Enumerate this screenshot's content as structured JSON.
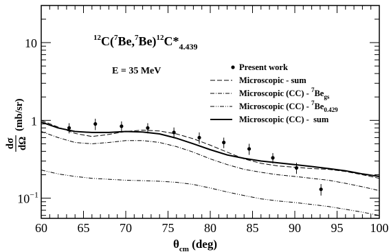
{
  "chart_data": {
    "type": "scatter",
    "title": {
      "sup1": "12",
      "t1": "C(",
      "sup2": "7",
      "t2": "Be,",
      "sup3": "7",
      "t3": "Be)",
      "sup4": "12",
      "t4": "C*",
      "sub": "4.439"
    },
    "energy_label": "E = 35 MeV",
    "xlabel": {
      "main": "θ",
      "sub": "cm",
      "rest": " (deg)"
    },
    "ylabel": {
      "num": "dσ",
      "den": "dΩ",
      "unit": "(mb/sr)"
    },
    "xlim": [
      60,
      100
    ],
    "ylim": [
      0.055,
      30
    ],
    "yscale": "log",
    "x_ticks": [
      60,
      65,
      70,
      75,
      80,
      85,
      90,
      95,
      100
    ],
    "x_tick_labels": [
      "60",
      "65",
      "70",
      "75",
      "80",
      "85",
      "90",
      "95",
      "100"
    ],
    "y_major_ticks": [
      {
        "value": 0.1,
        "label_base": "10",
        "label_exp": "−1"
      },
      {
        "value": 1,
        "label_base": "1",
        "label_exp": ""
      },
      {
        "value": 10,
        "label_base": "10",
        "label_exp": ""
      }
    ],
    "legend": {
      "placement": "top-right",
      "entries": [
        {
          "key": "data",
          "style": "marker",
          "text": "Present work",
          "sup": "",
          "sub": ""
        },
        {
          "key": "sum",
          "style": "dashed",
          "text": "Microscopic - sum",
          "sup": "",
          "sub": ""
        },
        {
          "key": "gs",
          "style": "dashdot",
          "text": "Microscopic (CC) - ",
          "sup": "7",
          "base": "Be",
          "sub": "gs"
        },
        {
          "key": "exc",
          "style": "dashdotdot",
          "text": "Microscopic (CC) - ",
          "sup": "7",
          "base": "Be",
          "sub": "0.429"
        },
        {
          "key": "ccsum",
          "style": "solid",
          "text": "Microscopic (CC) -  sum",
          "sup": "",
          "sub": ""
        }
      ]
    },
    "data_points": [
      {
        "x": 63.3,
        "y": 0.8,
        "err": 0.12
      },
      {
        "x": 66.4,
        "y": 0.9,
        "err": 0.15
      },
      {
        "x": 69.5,
        "y": 0.84,
        "err": 0.13
      },
      {
        "x": 72.6,
        "y": 0.8,
        "err": 0.12
      },
      {
        "x": 75.7,
        "y": 0.7,
        "err": 0.11
      },
      {
        "x": 78.7,
        "y": 0.6,
        "err": 0.1
      },
      {
        "x": 81.6,
        "y": 0.52,
        "err": 0.08
      },
      {
        "x": 84.6,
        "y": 0.43,
        "err": 0.07
      },
      {
        "x": 87.4,
        "y": 0.33,
        "err": 0.05
      },
      {
        "x": 90.2,
        "y": 0.245,
        "err": 0.04
      },
      {
        "x": 93.1,
        "y": 0.13,
        "err": 0.022
      }
    ],
    "series": [
      {
        "key": "sum",
        "style": "dashed",
        "x": [
          60,
          62,
          64,
          66,
          68,
          70,
          72,
          74,
          76,
          78,
          80,
          82,
          84,
          86,
          88,
          90,
          92,
          94,
          96,
          98,
          100
        ],
        "y": [
          1.0,
          0.82,
          0.68,
          0.62,
          0.66,
          0.72,
          0.75,
          0.73,
          0.67,
          0.58,
          0.48,
          0.39,
          0.32,
          0.28,
          0.26,
          0.25,
          0.24,
          0.235,
          0.22,
          0.2,
          0.18
        ]
      },
      {
        "key": "gs",
        "style": "dashdot",
        "x": [
          60,
          62,
          64,
          66,
          68,
          70,
          72,
          74,
          76,
          78,
          80,
          82,
          84,
          86,
          88,
          90,
          92,
          94,
          96,
          98,
          100
        ],
        "y": [
          0.72,
          0.6,
          0.52,
          0.5,
          0.52,
          0.55,
          0.55,
          0.52,
          0.46,
          0.39,
          0.32,
          0.27,
          0.235,
          0.215,
          0.2,
          0.19,
          0.18,
          0.17,
          0.155,
          0.14,
          0.125
        ]
      },
      {
        "key": "exc",
        "style": "dashdotdot",
        "x": [
          60,
          62,
          64,
          66,
          68,
          70,
          72,
          74,
          76,
          78,
          80,
          82,
          84,
          86,
          88,
          90,
          92,
          94,
          96,
          98,
          100
        ],
        "y": [
          0.23,
          0.205,
          0.19,
          0.18,
          0.175,
          0.17,
          0.168,
          0.165,
          0.16,
          0.15,
          0.135,
          0.12,
          0.108,
          0.098,
          0.092,
          0.088,
          0.083,
          0.078,
          0.072,
          0.066,
          0.06
        ]
      },
      {
        "key": "ccsum",
        "style": "solid",
        "x": [
          60,
          62,
          64,
          66,
          68,
          70,
          72,
          74,
          76,
          78,
          80,
          82,
          84,
          86,
          88,
          90,
          92,
          94,
          96,
          98,
          100
        ],
        "y": [
          0.95,
          0.8,
          0.72,
          0.7,
          0.7,
          0.72,
          0.71,
          0.67,
          0.59,
          0.5,
          0.42,
          0.36,
          0.325,
          0.3,
          0.285,
          0.27,
          0.255,
          0.24,
          0.225,
          0.205,
          0.19
        ]
      }
    ],
    "colors": {
      "line": "#000000",
      "background": "#ffffff"
    }
  }
}
